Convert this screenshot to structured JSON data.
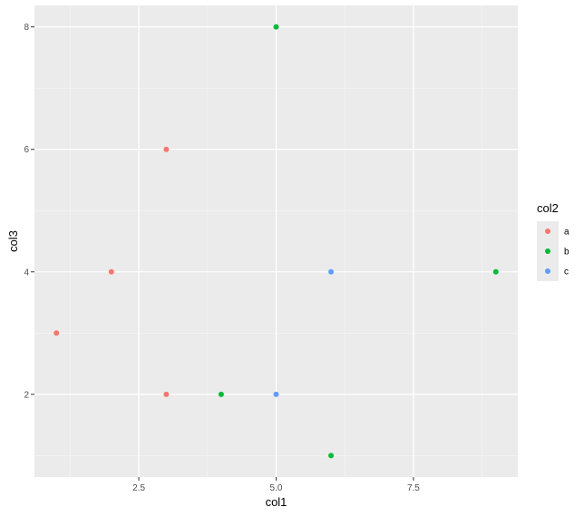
{
  "chart_data": {
    "type": "scatter",
    "xlabel": "col1",
    "ylabel": "col3",
    "xlim": [
      0.6,
      9.4
    ],
    "ylim": [
      0.65,
      8.35
    ],
    "x_ticks": [
      2.5,
      5.0,
      7.5
    ],
    "x_tick_labels": [
      "2.5",
      "5.0",
      "7.5"
    ],
    "y_ticks": [
      2,
      4,
      6,
      8
    ],
    "y_tick_labels": [
      "2",
      "4",
      "6",
      "8"
    ],
    "grid": true,
    "legend_position": "right",
    "legend_title": "col2",
    "series": [
      {
        "name": "a",
        "color": "#F8766D",
        "x": [
          1,
          2,
          3,
          3
        ],
        "y": [
          3,
          4,
          6,
          2
        ]
      },
      {
        "name": "b",
        "color": "#00BA38",
        "x": [
          4,
          5,
          6,
          9
        ],
        "y": [
          2,
          8,
          1,
          4
        ]
      },
      {
        "name": "c",
        "color": "#619CFF",
        "x": [
          5,
          6
        ],
        "y": [
          2,
          4
        ]
      }
    ]
  }
}
